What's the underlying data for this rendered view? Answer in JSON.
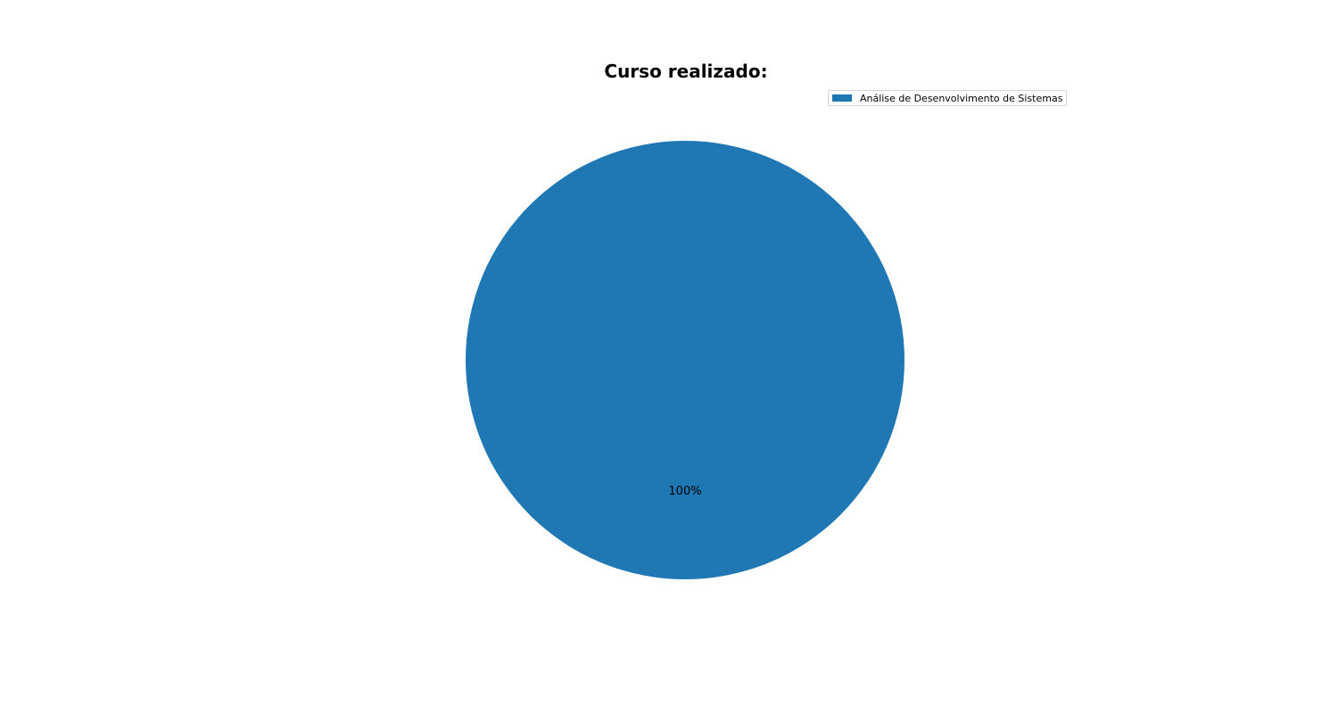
{
  "chart_data": {
    "type": "pie",
    "title": "Curso realizado:",
    "slices": [
      {
        "label": "Análise de Desenvolvimento de Sistemas",
        "value": 100,
        "pct_label": "100%",
        "color": "#1f77b4"
      }
    ],
    "legend_placement": "top-right",
    "startangle": 90
  }
}
